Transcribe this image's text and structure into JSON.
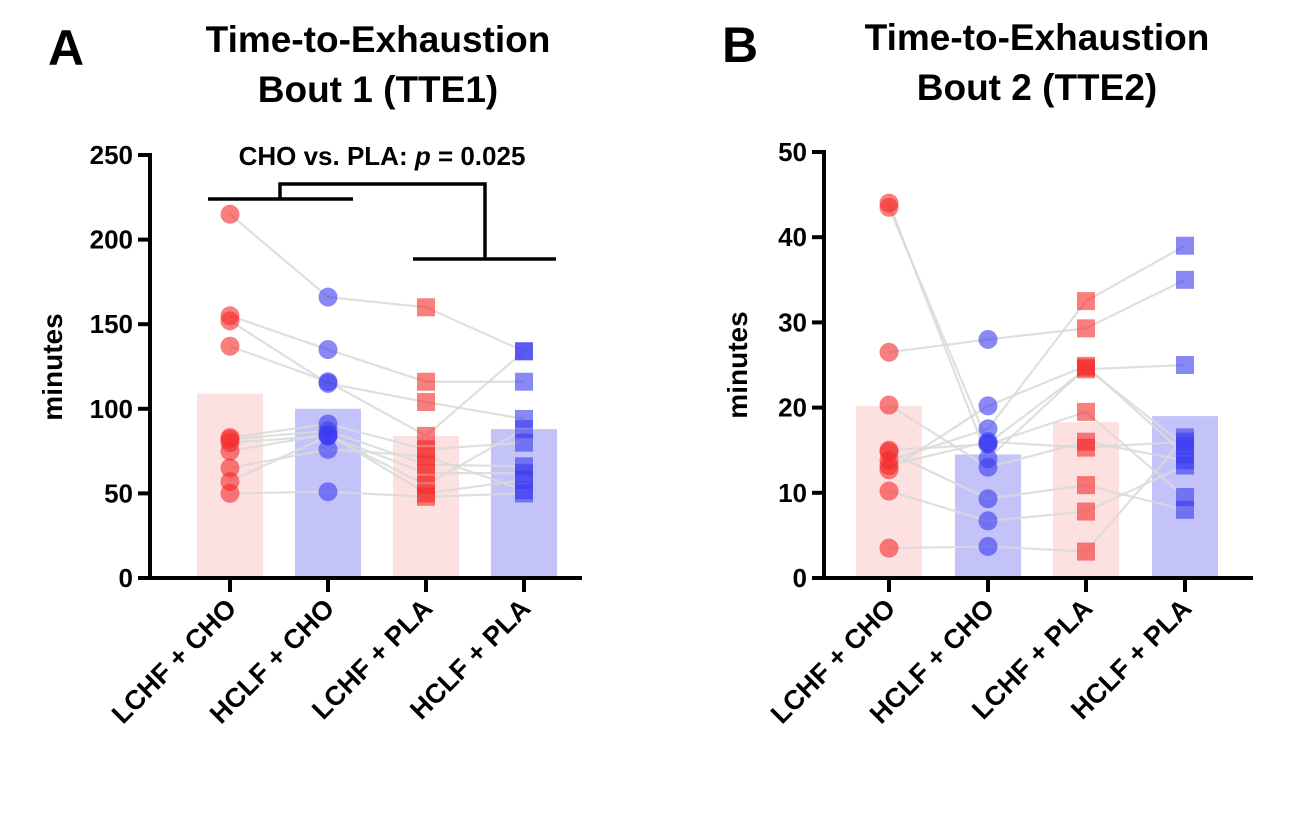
{
  "colors": {
    "red": "#f52a2a",
    "blue": "#3b3bf0",
    "red_bar": "#fde0e0",
    "blue_bar": "#c3c3fa",
    "line": "#d9d9d9",
    "axis": "#000000"
  },
  "chart_data": [
    {
      "type": "bar",
      "panel_label": "A",
      "title": "Time-to-Exhaustion\nBout 1 (TTE1)",
      "title_lines": [
        "Time-to-Exhaustion",
        "Bout 1 (TTE1)"
      ],
      "ylabel": "minutes",
      "xlabel": "",
      "ylim": [
        0,
        250
      ],
      "yticks": [
        0,
        50,
        100,
        150,
        200,
        250
      ],
      "categories": [
        "LCHF + CHO",
        "HCLF + CHO",
        "LCHF + PLA",
        "HCLF + PLA"
      ],
      "bar_means": [
        109,
        100,
        84,
        88
      ],
      "bar_colors": [
        "red",
        "blue",
        "red",
        "blue"
      ],
      "markers": [
        "circle",
        "circle",
        "square",
        "square"
      ],
      "annotation": {
        "text_prefix": "CHO vs. PLA: ",
        "p_symbol": "p",
        "text_suffix": " = 0.025",
        "comparison": "CHO vs. PLA",
        "p_value": 0.025
      },
      "subjects": [
        [
          215,
          166,
          160,
          134
        ],
        [
          155,
          135,
          116,
          116
        ],
        [
          152,
          115,
          104,
          94
        ],
        [
          137,
          116,
          84,
          134
        ],
        [
          83,
          91,
          76,
          80
        ],
        [
          82,
          87,
          67,
          66
        ],
        [
          80,
          84,
          62,
          62
        ],
        [
          75,
          85,
          50,
          58
        ],
        [
          65,
          76,
          72,
          52
        ],
        [
          57,
          84,
          55,
          88
        ],
        [
          50,
          51,
          48,
          50
        ]
      ],
      "grid": false
    },
    {
      "type": "bar",
      "panel_label": "B",
      "title": "Time-to-Exhaustion\nBout 2 (TTE2)",
      "title_lines": [
        "Time-to-Exhaustion",
        "Bout 2 (TTE2)"
      ],
      "ylabel": "minutes",
      "xlabel": "",
      "ylim": [
        0,
        50
      ],
      "yticks": [
        0,
        10,
        20,
        30,
        40,
        50
      ],
      "categories": [
        "LCHF + CHO",
        "HCLF + CHO",
        "LCHF + PLA",
        "HCLF + PLA"
      ],
      "bar_means": [
        20.2,
        14.5,
        18.3,
        19.0
      ],
      "bar_colors": [
        "red",
        "blue",
        "red",
        "blue"
      ],
      "markers": [
        "circle",
        "circle",
        "square",
        "square"
      ],
      "subjects": [
        [
          44,
          14,
          24.7,
          15.5
        ],
        [
          43.5,
          15.8,
          24.5,
          25
        ],
        [
          26.5,
          28,
          29.3,
          35
        ],
        [
          20.3,
          13,
          16,
          13.8
        ],
        [
          15,
          15.7,
          19.5,
          9.5
        ],
        [
          13.8,
          17.5,
          32.5,
          39
        ],
        [
          13.2,
          16,
          15.3,
          16
        ],
        [
          12.7,
          20.2,
          24.9,
          14.5
        ],
        [
          10.2,
          6.7,
          7.8,
          13.2
        ],
        [
          14.8,
          9.3,
          10.9,
          8
        ],
        [
          3.5,
          3.7,
          3.1,
          16.5
        ]
      ],
      "grid": false
    }
  ]
}
